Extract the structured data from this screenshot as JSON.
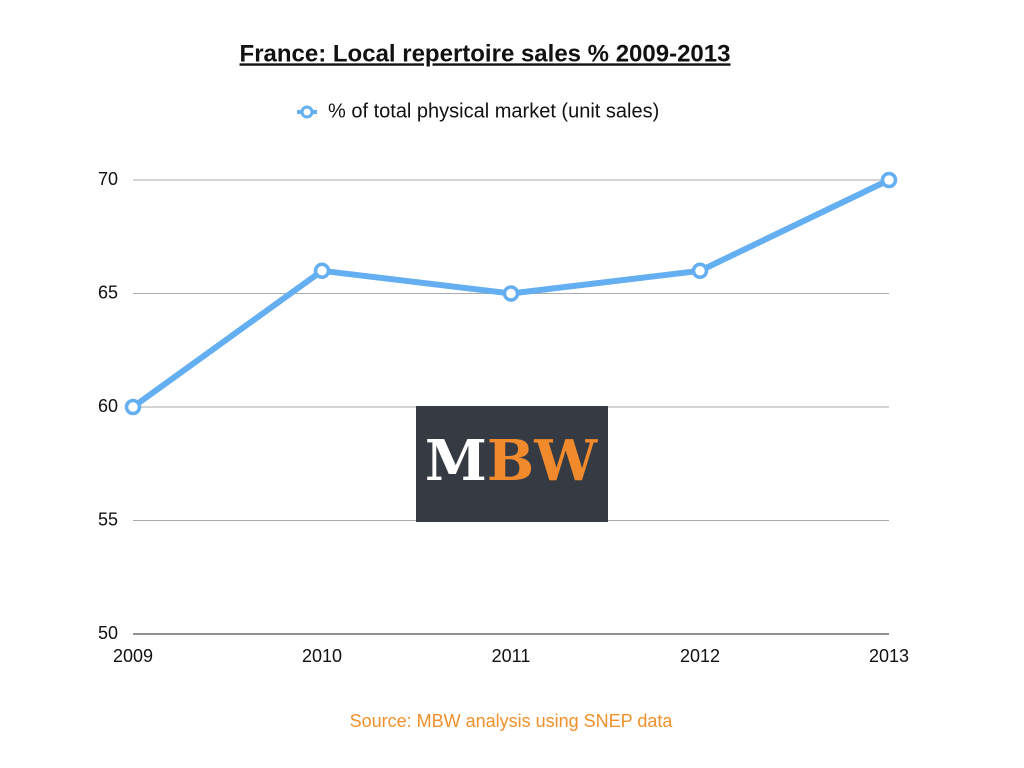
{
  "chart_data": {
    "type": "line",
    "title": "France: Local repertoire sales % 2009-2013",
    "x": [
      2009,
      2010,
      2011,
      2012,
      2013
    ],
    "series": [
      {
        "name": "% of total physical market (unit sales)",
        "color": "#64aef2",
        "values": [
          60,
          66,
          65,
          66,
          70
        ]
      }
    ],
    "xlim": [
      2009,
      2013
    ],
    "xticks": [
      2009,
      2010,
      2011,
      2012,
      2013
    ],
    "ylim": [
      50,
      70
    ],
    "yticks": [
      50,
      55,
      60,
      65,
      70
    ],
    "grid": true,
    "legend": "top",
    "logo": [
      "M",
      "BW"
    ],
    "source": "Source: MBW analysis using SNEP data"
  }
}
